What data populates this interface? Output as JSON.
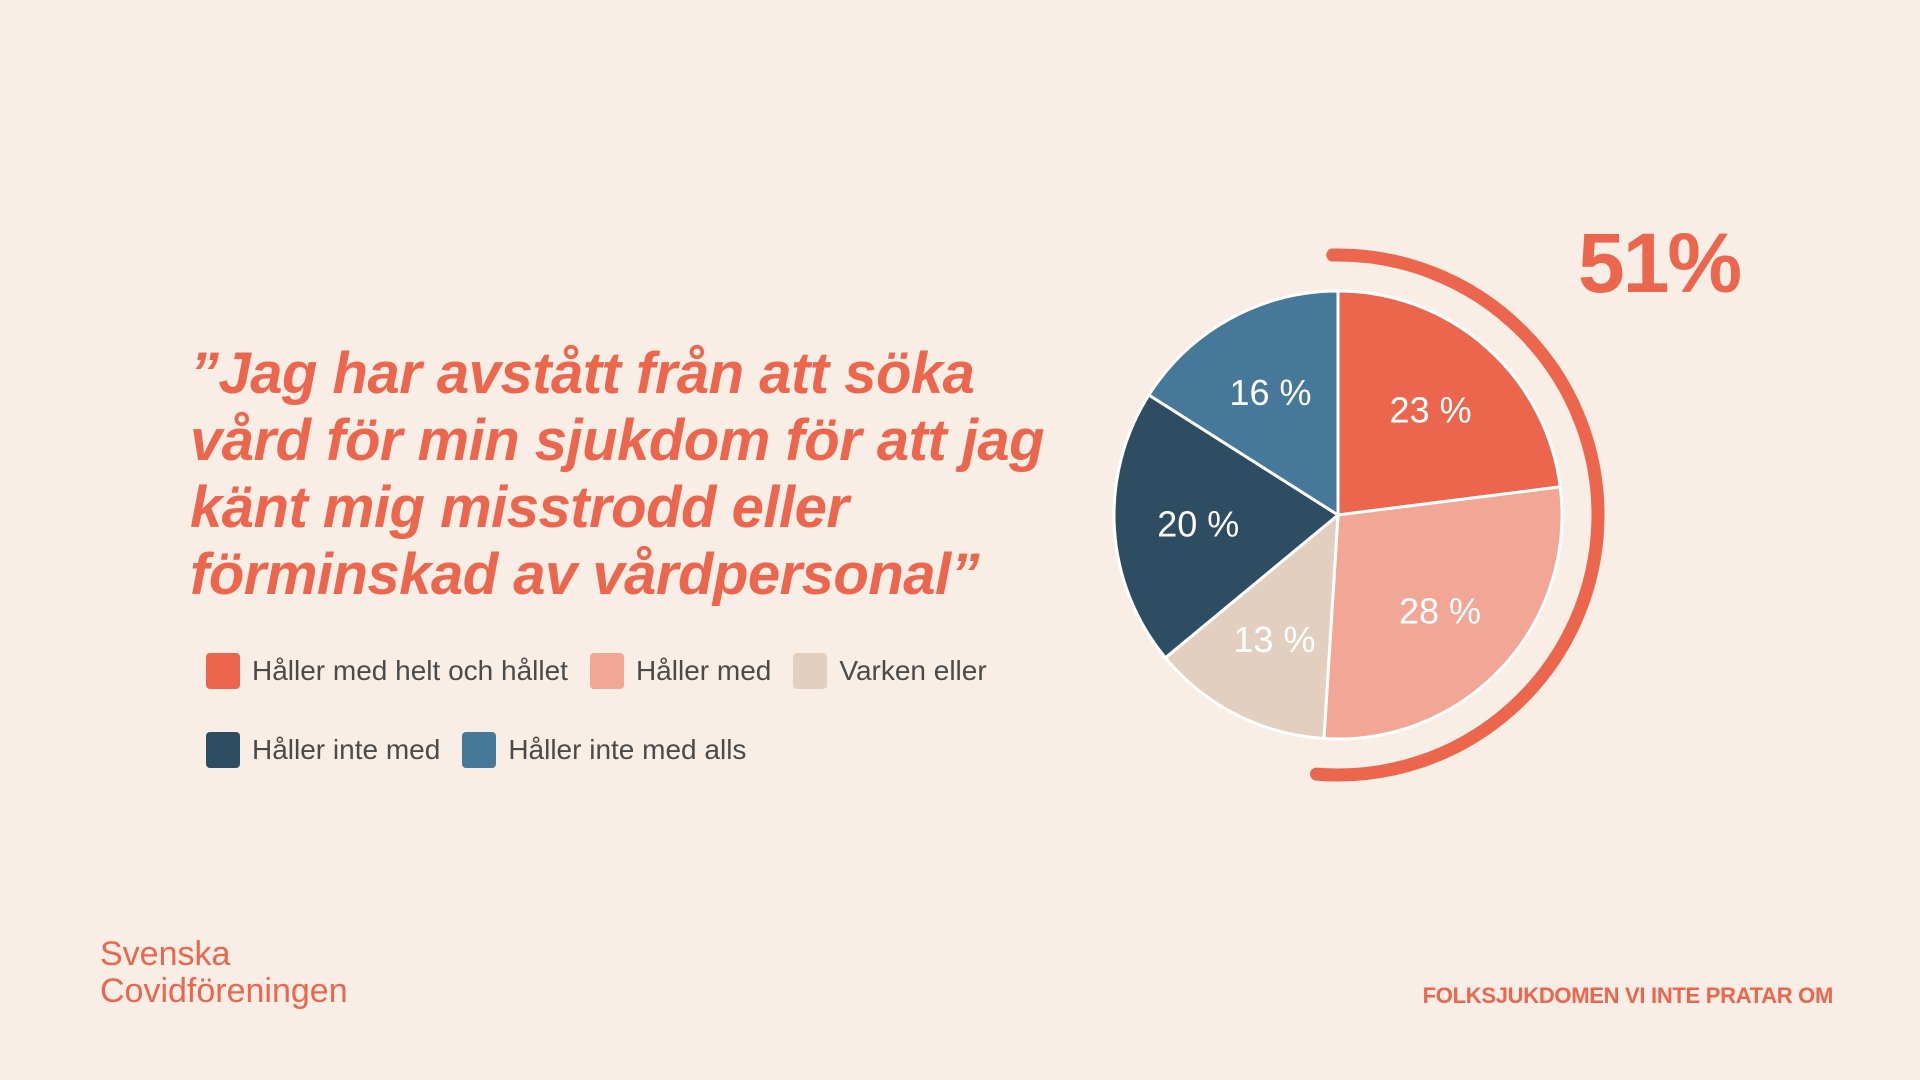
{
  "quote": "”Jag har avstått från att söka vård för min sjukdom för att jag känt mig misstrodd eller förminskad av vårdpersonal”",
  "highlight_label": "51%",
  "brand": {
    "line1": "Svenska",
    "line2": "Covidföreningen"
  },
  "tagline": "FOLKSJUKDOMEN VI INTE PRATAR OM",
  "colors": {
    "background": "#f8eee6",
    "accent": "#ec664d",
    "text": "#4a4a4a"
  },
  "chart_data": {
    "type": "pie",
    "title": "",
    "slices": [
      {
        "name": "Håller med helt och hållet",
        "value": 23,
        "label": "23 %",
        "color": "#ec664d"
      },
      {
        "name": "Håller med",
        "value": 28,
        "label": "28 %",
        "color": "#f2a696"
      },
      {
        "name": "Varken eller",
        "value": 13,
        "label": "13 %",
        "color": "#e2cfbf"
      },
      {
        "name": "Håller inte med",
        "value": 20,
        "label": "20 %",
        "color": "#2e4d62"
      },
      {
        "name": "Håller inte med alls",
        "value": 16,
        "label": "16 %",
        "color": "#457899"
      }
    ],
    "highlighted_value": 51,
    "legend_position": "bottom-left"
  }
}
